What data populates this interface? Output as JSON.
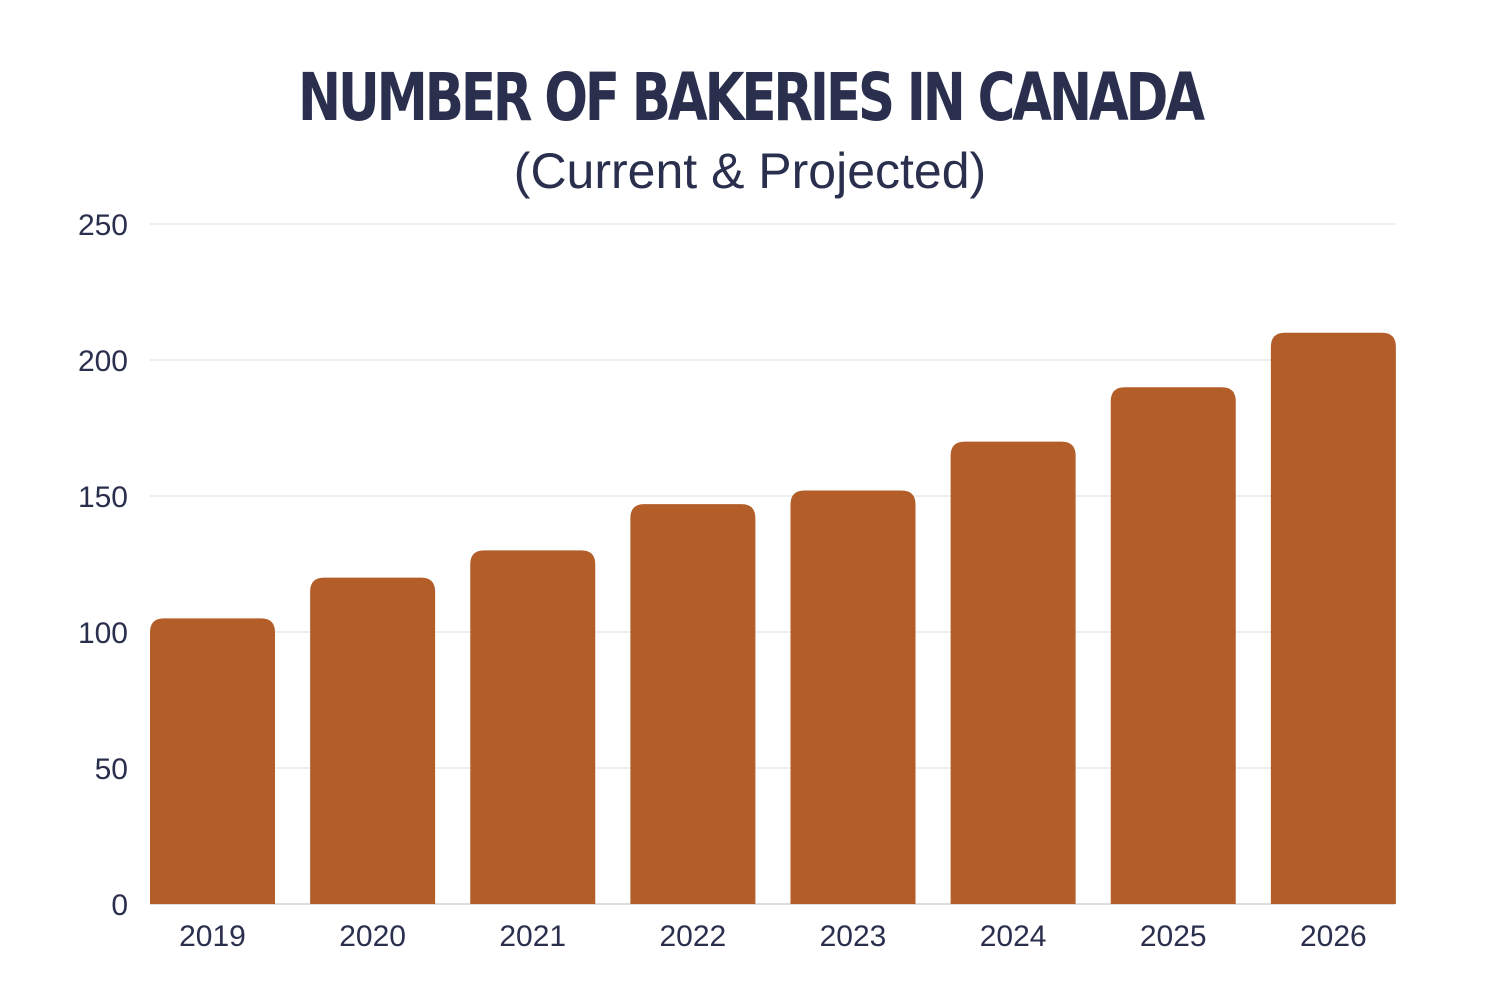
{
  "chart_data": {
    "type": "bar",
    "title": "NUMBER OF BAKERIES IN CANADA",
    "subtitle": "(Current & Projected)",
    "xlabel": "",
    "ylabel": "",
    "categories": [
      "2019",
      "2020",
      "2021",
      "2022",
      "2023",
      "2024",
      "2025",
      "2026"
    ],
    "values": [
      105,
      120,
      130,
      147,
      152,
      170,
      190,
      210
    ],
    "ylim": [
      0,
      250
    ],
    "yticks": [
      0,
      50,
      100,
      150,
      200,
      250
    ],
    "grid": true,
    "bar_color": "#b35e28",
    "text_color": "#2a2f4e",
    "grid_color": "#dddddd"
  }
}
